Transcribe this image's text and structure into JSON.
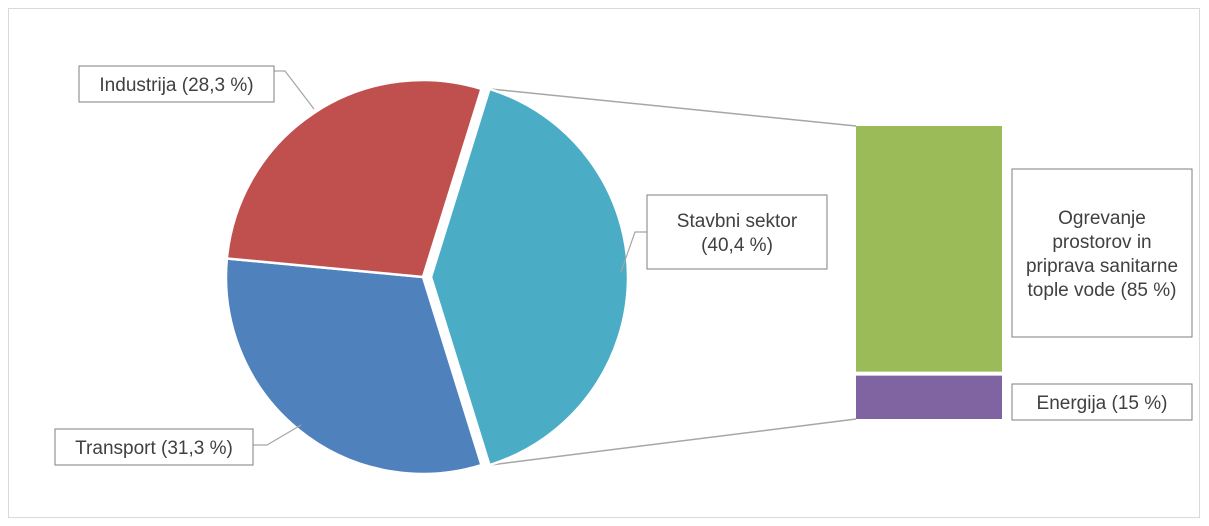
{
  "chart_data": {
    "type": "bar-of-pie",
    "pie": {
      "slices": [
        {
          "label": "Stavbni sektor (40,4 %)",
          "label_lines": [
            "Stavbni sektor",
            "(40,4 %)"
          ],
          "value": 40.4,
          "color": "#4BACC6"
        },
        {
          "label": "Transport (31,3 %)",
          "label_lines": [
            "Transport (31,3 %)"
          ],
          "value": 31.3,
          "color": "#4F81BD"
        },
        {
          "label": "Industrija (28,3 %)",
          "label_lines": [
            "Industrija (28,3 %)"
          ],
          "value": 28.3,
          "color": "#C0504D"
        }
      ],
      "exploded_slice": "Stavbni sektor (40,4 %)"
    },
    "bar": {
      "segments": [
        {
          "label": "Ogrevanje prostorov in priprava sanitarne tople vode (85 %)",
          "label_lines": [
            "Ogrevanje",
            "prostorov in",
            "priprava sanitarne",
            "tople vode (85 %)"
          ],
          "value": 85,
          "color": "#9BBB59"
        },
        {
          "label": "Energija (15 %)",
          "label_lines": [
            "Energija (15 %)"
          ],
          "value": 15,
          "color": "#8064A2"
        }
      ]
    }
  }
}
